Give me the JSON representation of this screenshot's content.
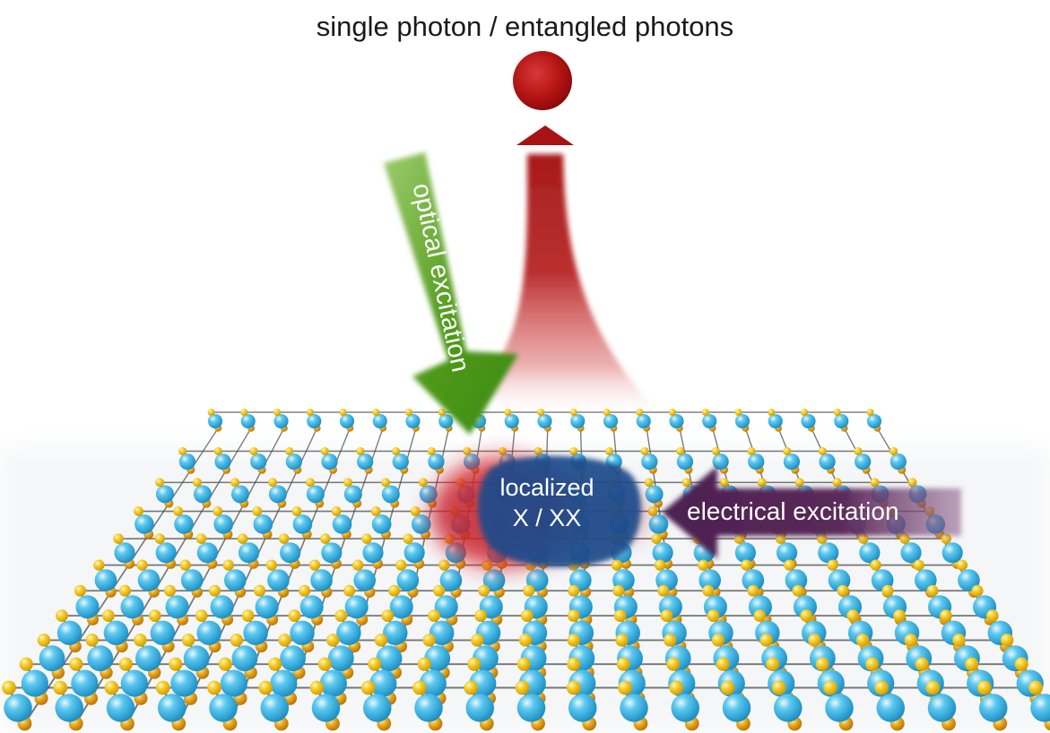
{
  "diagram": {
    "title": "single photon / entangled photons",
    "optical_label": "optical excitation",
    "localized_label_line1": "localized",
    "localized_label_line2": "X / XX",
    "electrical_label": "electrical excitation"
  },
  "colors": {
    "photon": "#b01212",
    "emission": "#a81414",
    "optical_arrow": "#4f9a1a",
    "electrical_arrow": "#5b2a5a",
    "localized_spot": "#1f4c8c",
    "localized_glow": "#d8202a",
    "metal_atom": "#3fb7e6",
    "chalcogen_atom": "#f2c21a",
    "bond": "#4a4a4a"
  }
}
